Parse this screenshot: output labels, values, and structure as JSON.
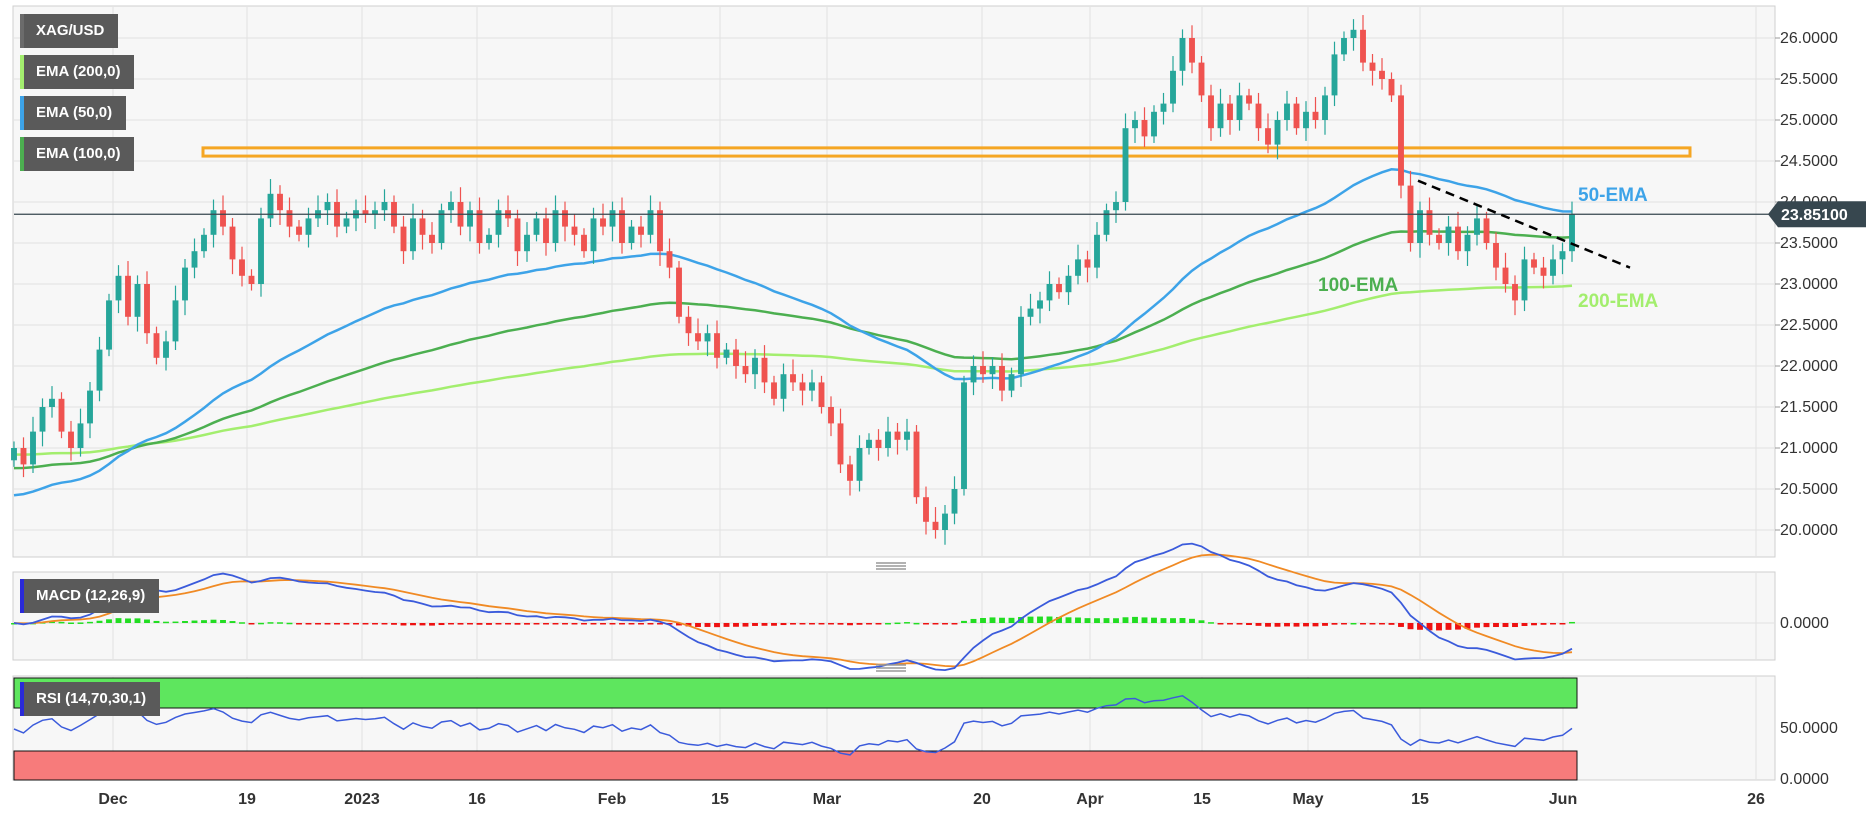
{
  "chart_data": [
    {
      "type": "candlestick",
      "symbol": "XAG/USD",
      "indicators": [
        "EMA (200,0)",
        "EMA (50,0)",
        "EMA (100,0)"
      ],
      "indicator_colors": {
        "ema50": "#3da3e8",
        "ema100": "#4caf50",
        "ema200": "#a3ee6e",
        "up": "#26a69a",
        "down": "#ef5350",
        "resistance": "#f5a623",
        "trendline": "#000000"
      },
      "ylim": [
        19.7,
        26.45
      ],
      "y_ticks": [
        "26.0000",
        "25.5000",
        "25.0000",
        "24.5000",
        "24.0000",
        "23.5000",
        "23.0000",
        "22.5000",
        "22.0000",
        "21.5000",
        "21.0000",
        "20.5000",
        "20.0000"
      ],
      "x_ticks": [
        "Dec",
        "19",
        "2023",
        "16",
        "Feb",
        "15",
        "Mar",
        "20",
        "Apr",
        "15",
        "May",
        "15",
        "Jun",
        "26"
      ],
      "last_price": "23.85100",
      "annotations": [
        "50-EMA",
        "100-EMA",
        "200-EMA"
      ],
      "resistance_zone": [
        24.56,
        24.66
      ],
      "closes": [
        21.0,
        20.8,
        21.2,
        21.5,
        21.6,
        21.2,
        21.0,
        21.3,
        21.7,
        22.2,
        22.8,
        23.1,
        22.6,
        23.0,
        22.4,
        22.1,
        22.3,
        22.8,
        23.2,
        23.4,
        23.6,
        23.9,
        23.7,
        23.3,
        23.1,
        23.0,
        23.8,
        24.1,
        23.9,
        23.7,
        23.6,
        23.8,
        23.9,
        24.0,
        23.7,
        23.8,
        23.9,
        23.85,
        23.9,
        24.0,
        23.7,
        23.4,
        23.8,
        23.6,
        23.5,
        23.9,
        24.0,
        23.7,
        23.9,
        23.5,
        23.6,
        23.9,
        23.8,
        23.4,
        23.6,
        23.8,
        23.5,
        23.9,
        23.7,
        23.6,
        23.4,
        23.8,
        23.7,
        23.9,
        23.5,
        23.7,
        23.6,
        23.9,
        23.4,
        23.2,
        22.6,
        22.4,
        22.3,
        22.4,
        22.1,
        22.2,
        22.0,
        21.9,
        22.1,
        21.8,
        21.6,
        21.9,
        21.8,
        21.7,
        21.8,
        21.5,
        21.3,
        20.8,
        20.6,
        21.0,
        21.1,
        21.0,
        21.2,
        21.1,
        21.2,
        20.4,
        20.1,
        20.0,
        20.2,
        20.5,
        21.8,
        22.0,
        21.9,
        22.0,
        21.7,
        21.9,
        22.6,
        22.7,
        22.8,
        23.0,
        22.9,
        23.1,
        23.3,
        23.2,
        23.6,
        23.9,
        24.0,
        24.9,
        25.0,
        24.8,
        25.1,
        25.2,
        25.6,
        26.0,
        25.7,
        25.3,
        24.9,
        25.2,
        25.0,
        25.3,
        25.2,
        24.9,
        24.7,
        25.0,
        25.2,
        24.9,
        25.1,
        25.0,
        25.3,
        25.8,
        26.0,
        26.1,
        25.7,
        25.6,
        25.5,
        25.3,
        24.2,
        23.5,
        23.9,
        23.6,
        23.5,
        23.7,
        23.4,
        23.6,
        23.8,
        23.5,
        23.2,
        23.0,
        22.8,
        23.3,
        23.2,
        23.1,
        23.3,
        23.4,
        23.85
      ]
    },
    {
      "type": "line",
      "label": "MACD (12,26,9)",
      "y_ticks": [
        "0.0000"
      ],
      "colors": {
        "macd": "#3b5bdb",
        "signal": "#f08a24",
        "hist_pos": "#22dd22",
        "hist_neg": "#ee1111"
      }
    },
    {
      "type": "line",
      "label": "RSI (14,70,30,1)",
      "y_ticks": [
        "50.0000",
        "0.0000"
      ],
      "levels": [
        70,
        30
      ],
      "colors": {
        "line": "#3b5bdb",
        "overbought": "#5ee65e",
        "oversold": "#f77b7b"
      }
    }
  ]
}
